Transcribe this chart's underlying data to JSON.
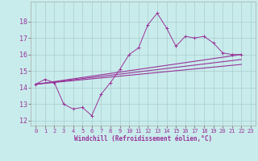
{
  "xlabel": "Windchill (Refroidissement éolien,°C)",
  "bg_color": "#c8ecec",
  "line_color": "#993399",
  "grid_color": "#aacccc",
  "spine_color": "#aaaaaa",
  "xlim": [
    -0.5,
    23.5
  ],
  "ylim": [
    11.7,
    19.2
  ],
  "yticks": [
    12,
    13,
    14,
    15,
    16,
    17,
    18
  ],
  "xticks": [
    0,
    1,
    2,
    3,
    4,
    5,
    6,
    7,
    8,
    9,
    10,
    11,
    12,
    13,
    14,
    15,
    16,
    17,
    18,
    19,
    20,
    21,
    22,
    23
  ],
  "series1_x": [
    0,
    1,
    2,
    3,
    4,
    5,
    6,
    7,
    8,
    9,
    10,
    11,
    12,
    13,
    14,
    15,
    16,
    17,
    18,
    19,
    20,
    21,
    22
  ],
  "series1_y": [
    14.2,
    14.5,
    14.3,
    13.0,
    12.7,
    12.8,
    12.3,
    13.6,
    14.3,
    15.1,
    16.0,
    16.4,
    17.8,
    18.5,
    17.6,
    16.5,
    17.1,
    17.0,
    17.1,
    16.7,
    16.1,
    16.0,
    16.0
  ],
  "line2_x": [
    0,
    22
  ],
  "line2_y": [
    14.2,
    16.0
  ],
  "line3_x": [
    0,
    22
  ],
  "line3_y": [
    14.2,
    15.7
  ],
  "line4_x": [
    0,
    22
  ],
  "line4_y": [
    14.2,
    15.4
  ]
}
